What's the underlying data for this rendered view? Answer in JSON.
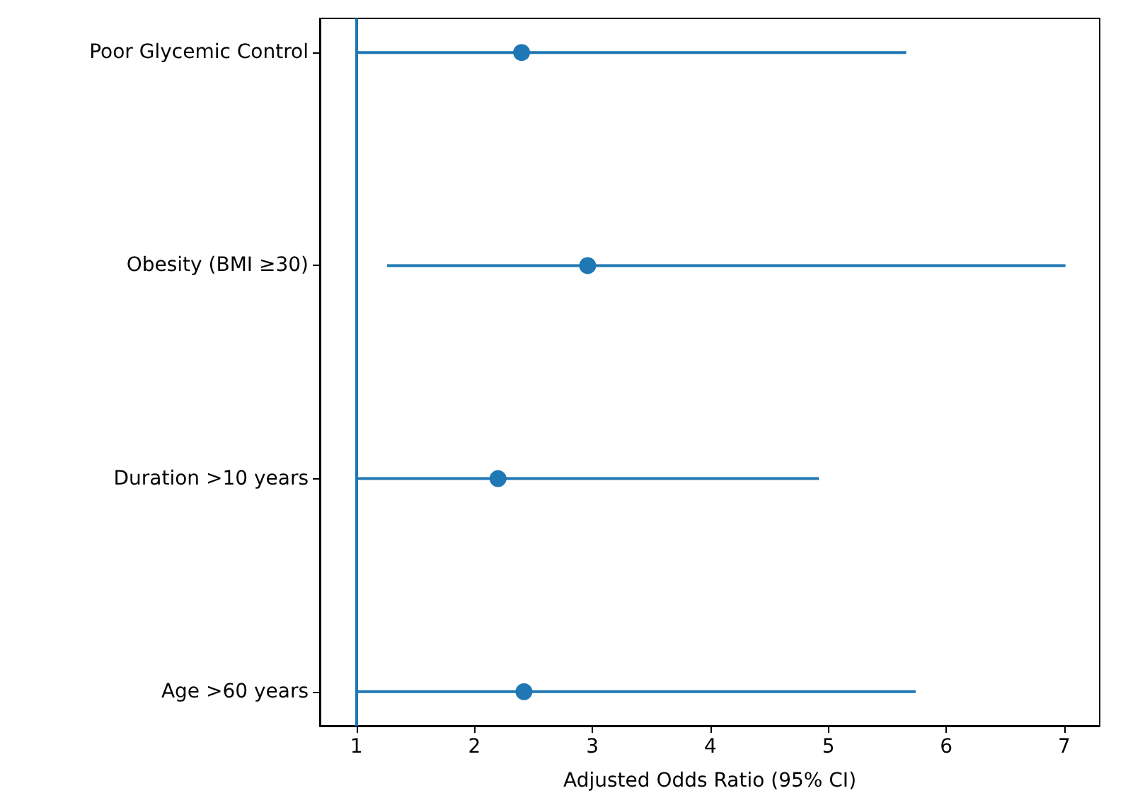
{
  "chart_data": {
    "type": "scatter",
    "orientation": "horizontal",
    "categories": [
      "Poor Glycemic Control",
      "Obesity (BMI ≥30)",
      "Duration >10 years",
      "Age >60 years"
    ],
    "values": [
      2.4,
      2.96,
      2.2,
      2.42
    ],
    "errors": [
      [
        1.0,
        5.66
      ],
      [
        1.26,
        7.01
      ],
      [
        1.0,
        4.92
      ],
      [
        1.0,
        5.74
      ]
    ],
    "color": "#1f77b4",
    "xlabel": "Adjusted Odds Ratio (95% CI)",
    "xlim": [
      0.69,
      7.3
    ],
    "xticks": [
      1,
      2,
      3,
      4,
      5,
      6,
      7
    ],
    "ref_lines": [
      {
        "axis": "x",
        "value": 1,
        "color": "#1f77b4"
      }
    ],
    "marker": "circle",
    "grid": false
  }
}
